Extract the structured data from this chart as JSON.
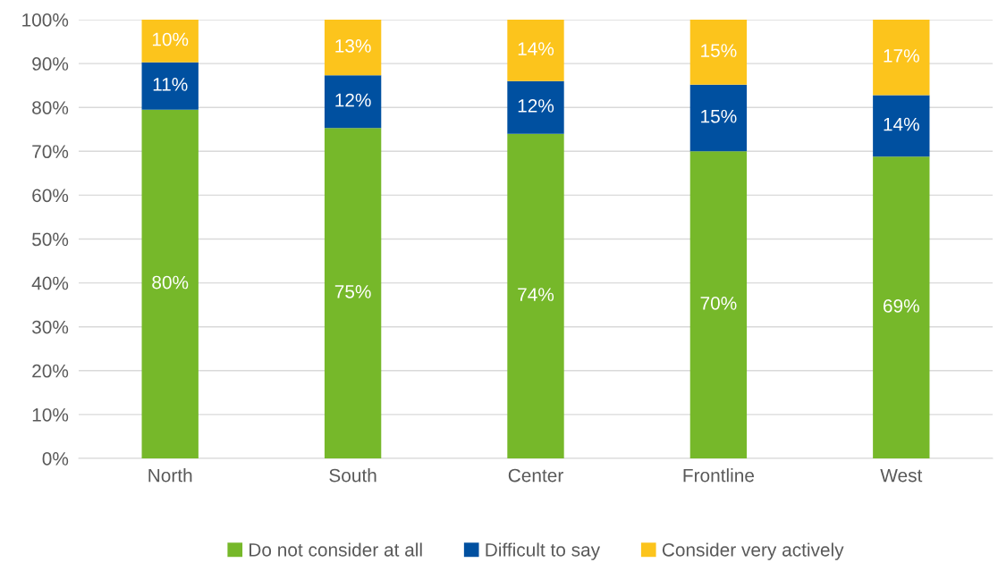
{
  "chart_data": {
    "type": "bar",
    "stacked": true,
    "categories": [
      "North",
      "South",
      "Center",
      "Frontline",
      "West"
    ],
    "series": [
      {
        "name": "Do not consider at all",
        "color": "#76b82a",
        "values": [
          79.5,
          75.3,
          74,
          70,
          68.8
        ],
        "value_labels": [
          "80%",
          "75%",
          "74%",
          "70%",
          "69%"
        ]
      },
      {
        "name": "Difficult to say",
        "color": "#0050a0",
        "values": [
          10.8,
          12,
          12,
          15.2,
          14
        ],
        "value_labels": [
          "11%",
          "12%",
          "12%",
          "15%",
          "14%"
        ]
      },
      {
        "name": "Consider very actively",
        "color": "#fcc41c",
        "values": [
          9.7,
          12.7,
          14,
          14.8,
          17.2
        ],
        "value_labels": [
          "10%",
          "13%",
          "14%",
          "15%",
          "17%"
        ]
      }
    ],
    "ylim": [
      0,
      100
    ],
    "yticks": [
      {
        "value": 0,
        "label": "0%"
      },
      {
        "value": 10,
        "label": "10%"
      },
      {
        "value": 20,
        "label": "20%"
      },
      {
        "value": 30,
        "label": "30%"
      },
      {
        "value": 40,
        "label": "40%"
      },
      {
        "value": 50,
        "label": "50%"
      },
      {
        "value": 60,
        "label": "60%"
      },
      {
        "value": 70,
        "label": "70%"
      },
      {
        "value": 80,
        "label": "80%"
      },
      {
        "value": 90,
        "label": "90%"
      },
      {
        "value": 100,
        "label": "100%"
      }
    ],
    "grid": "y",
    "legend": "bottom"
  }
}
